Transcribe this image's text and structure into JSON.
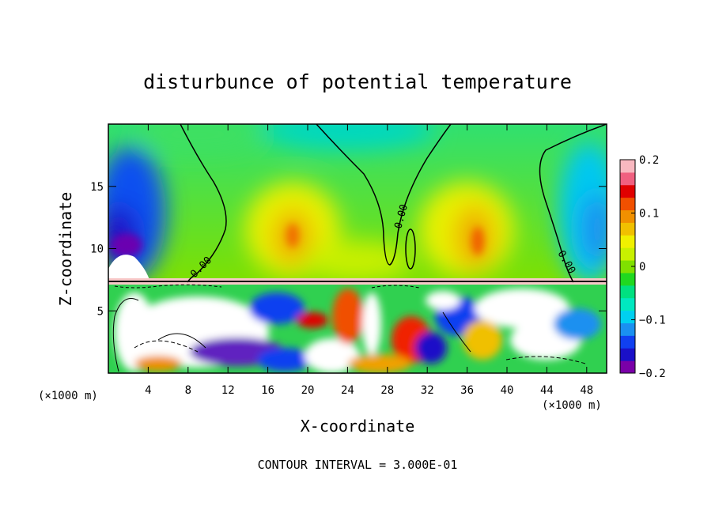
{
  "chart_data": {
    "type": "heatmap",
    "title": "disturbunce of potential temperature",
    "xlabel": "X-coordinate",
    "ylabel": "Z-coordinate",
    "x_unit": "(×1000 m)",
    "z_unit": "(×1000 m)",
    "xlim": [
      0,
      50
    ],
    "ylim": [
      0,
      20
    ],
    "x_ticks": [
      4,
      8,
      12,
      16,
      20,
      24,
      28,
      32,
      36,
      40,
      44,
      48
    ],
    "y_ticks": [
      5,
      10,
      15
    ],
    "colorbar": {
      "ticks": [
        0.2,
        0.1,
        0,
        -0.1,
        -0.2
      ],
      "tick_labels": [
        "0.2",
        "0.1",
        "0",
        "−0.1",
        "−0.2"
      ],
      "range": [
        -0.2,
        0.2
      ],
      "colors": [
        "#7a00a8",
        "#1a10c8",
        "#1040f0",
        "#1a90f0",
        "#00d0f0",
        "#00e8c0",
        "#00e080",
        "#20d820",
        "#80e000",
        "#c8f000",
        "#f0f000",
        "#f0c000",
        "#f09000",
        "#f05000",
        "#e00000",
        "#f06080",
        "#f8b8c0"
      ]
    },
    "contour_label": "0.00",
    "contour_interval_text": "CONTOUR INTERVAL = 3.000E-01"
  }
}
